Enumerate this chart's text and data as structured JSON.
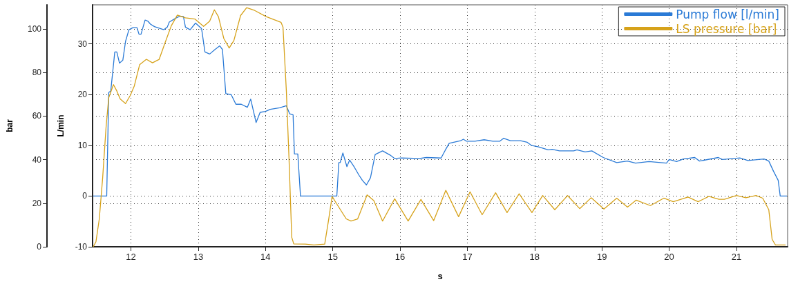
{
  "chart_data": {
    "type": "line",
    "xlabel": "s",
    "ylabel": "bar",
    "y2label": "L/min",
    "xlim": [
      11.43,
      21.76
    ],
    "xticks": [
      12,
      13,
      14,
      15,
      16,
      17,
      18,
      19,
      20,
      21
    ],
    "ylim": [
      0,
      111
    ],
    "yticks": [
      0,
      20,
      40,
      60,
      80,
      100
    ],
    "y2lim": [
      -10,
      37.7
    ],
    "y2ticks": [
      -10,
      0,
      10,
      20,
      30
    ],
    "grid": true,
    "legend": "top right",
    "marker": "none",
    "line_style": "solid",
    "series": [
      {
        "name": "Pump flow [l/min]",
        "color": "#2a7ad6",
        "axis": "y2",
        "x": [
          11.44,
          11.64,
          11.67,
          11.7,
          11.76,
          11.79,
          11.83,
          11.88,
          11.92,
          11.97,
          12.03,
          12.09,
          12.12,
          12.15,
          12.21,
          12.25,
          12.29,
          12.35,
          12.49,
          12.54,
          12.57,
          12.67,
          12.72,
          12.78,
          12.81,
          12.88,
          12.96,
          13.05,
          13.1,
          13.17,
          13.25,
          13.32,
          13.36,
          13.41,
          13.49,
          13.56,
          13.64,
          13.73,
          13.78,
          13.86,
          13.92,
          14.0,
          14.07,
          14.21,
          14.31,
          14.36,
          14.41,
          14.43,
          14.48,
          14.52,
          15.06,
          15.09,
          15.11,
          15.15,
          15.21,
          15.25,
          15.32,
          15.39,
          15.44,
          15.5,
          15.56,
          15.63,
          15.74,
          15.85,
          15.92,
          16.02,
          16.29,
          16.39,
          16.61,
          16.67,
          16.73,
          16.9,
          16.94,
          16.99,
          17.11,
          17.25,
          17.38,
          17.48,
          17.54,
          17.64,
          17.79,
          17.89,
          17.95,
          18.06,
          18.2,
          18.26,
          18.37,
          18.58,
          18.63,
          18.75,
          18.85,
          19.02,
          19.22,
          19.38,
          19.5,
          19.7,
          19.96,
          20.0,
          20.11,
          20.21,
          20.38,
          20.45,
          20.73,
          20.79,
          21.05,
          21.17,
          21.41,
          21.48,
          21.55,
          21.62,
          21.65,
          21.75
        ],
        "values": [
          0,
          0,
          20.4,
          20.7,
          28.4,
          28.4,
          26.2,
          26.8,
          30.5,
          32.8,
          33.2,
          33.2,
          31.9,
          31.9,
          34.7,
          34.5,
          33.9,
          33.4,
          32.8,
          33.3,
          34.3,
          35.1,
          35.4,
          35.4,
          33.3,
          32.8,
          34.1,
          33.0,
          28.4,
          28.0,
          28.9,
          29.6,
          28.9,
          20.2,
          20.0,
          18.1,
          18.1,
          17.5,
          19.1,
          14.5,
          16.5,
          16.7,
          17.1,
          17.4,
          17.8,
          16.2,
          16.0,
          8.3,
          8.3,
          0,
          0,
          6.6,
          6.6,
          8.5,
          5.8,
          7.1,
          5.7,
          4.1,
          3.1,
          2.2,
          3.6,
          8.2,
          8.9,
          8.1,
          7.4,
          7.5,
          7.4,
          7.6,
          7.5,
          9.0,
          10.4,
          10.9,
          11.2,
          10.8,
          10.8,
          11.1,
          10.8,
          10.8,
          11.4,
          10.9,
          10.9,
          10.6,
          10.0,
          9.7,
          9.1,
          9.2,
          8.9,
          8.9,
          9.1,
          8.7,
          8.9,
          7.6,
          6.6,
          6.9,
          6.5,
          6.8,
          6.5,
          7.2,
          6.8,
          7.3,
          7.6,
          6.9,
          7.6,
          7.2,
          7.5,
          7.0,
          7.3,
          6.9,
          4.9,
          3.1,
          0,
          0
        ]
      },
      {
        "name": "LS pressure [bar]",
        "color": "#d6a21a",
        "x": [
          11.44,
          11.48,
          11.53,
          11.58,
          11.63,
          11.67,
          11.74,
          11.79,
          11.84,
          11.92,
          11.99,
          12.05,
          12.13,
          12.23,
          12.32,
          12.42,
          12.5,
          12.6,
          12.69,
          12.81,
          12.95,
          13.08,
          13.17,
          13.24,
          13.3,
          13.38,
          13.46,
          13.53,
          13.63,
          13.72,
          13.84,
          14.01,
          14.23,
          14.26,
          14.31,
          14.35,
          14.39,
          14.42,
          14.59,
          14.72,
          14.88,
          14.94,
          14.99,
          15.06,
          15.2,
          15.27,
          15.37,
          15.51,
          15.61,
          15.74,
          15.92,
          16.12,
          16.31,
          16.5,
          16.68,
          16.87,
          17.04,
          17.22,
          17.42,
          17.59,
          17.77,
          17.96,
          18.12,
          18.3,
          18.49,
          18.67,
          18.84,
          19.03,
          19.22,
          19.38,
          19.51,
          19.72,
          19.92,
          20.06,
          20.28,
          20.43,
          20.59,
          20.74,
          20.82,
          21.0,
          21.14,
          21.29,
          21.39,
          21.48,
          21.53,
          21.58,
          21.73
        ],
        "values": [
          0,
          2.3,
          12.8,
          31.7,
          54.7,
          68.4,
          74.4,
          71.5,
          67.8,
          65.7,
          69.4,
          73.8,
          83.6,
          86.0,
          84.4,
          86.0,
          93.0,
          101.4,
          106.3,
          105.0,
          104.5,
          101.1,
          103.5,
          108.7,
          105.6,
          95.6,
          91.2,
          94.6,
          106.1,
          109.7,
          108.4,
          105.6,
          103.0,
          100.8,
          71.5,
          40.1,
          4.4,
          1.3,
          1.2,
          0.8,
          1.2,
          12.8,
          23.1,
          19.6,
          12.8,
          11.8,
          12.8,
          23.8,
          21.2,
          11.8,
          22.0,
          11.8,
          21.7,
          12.0,
          25.9,
          13.8,
          25.2,
          14.7,
          24.8,
          15.7,
          24.3,
          15.7,
          23.5,
          17.0,
          23.5,
          17.5,
          22.5,
          17.3,
          22.3,
          18.2,
          21.4,
          18.9,
          22.3,
          20.7,
          22.8,
          20.7,
          23.1,
          21.8,
          21.8,
          23.5,
          22.5,
          23.5,
          22.3,
          17.0,
          3.4,
          0.8,
          0.8
        ]
      }
    ]
  }
}
